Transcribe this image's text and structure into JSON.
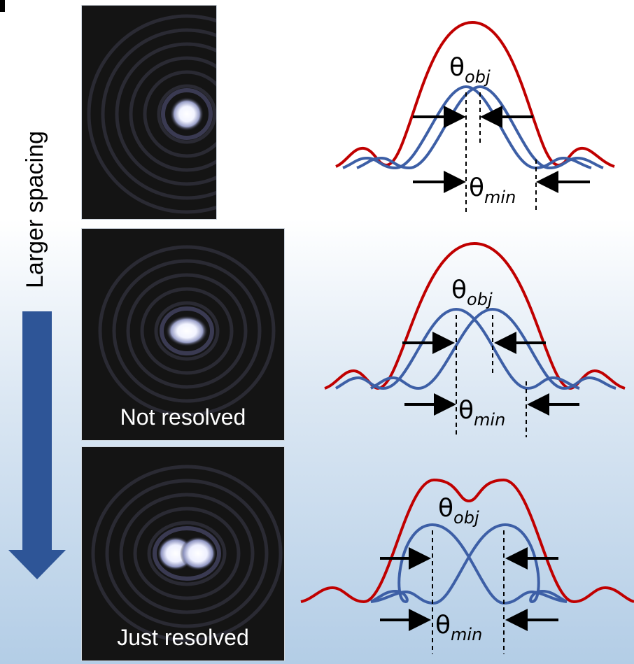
{
  "side_label": "Larger spacing",
  "colors": {
    "objective": "#c00000",
    "airy": "#3d5fa6",
    "arrow": "#2e5597",
    "annotation": "#000000"
  },
  "rows": [
    {
      "panel_label": "",
      "theta_obj": "θ",
      "obj_sub": "obj",
      "theta_min": "θ",
      "min_sub": "min"
    },
    {
      "panel_label": "Not resolved",
      "theta_obj": "θ",
      "obj_sub": "obj",
      "theta_min": "θ",
      "min_sub": "min"
    },
    {
      "panel_label": "Just resolved",
      "theta_obj": "θ",
      "obj_sub": "obj",
      "theta_min": "θ",
      "min_sub": "min"
    }
  ]
}
